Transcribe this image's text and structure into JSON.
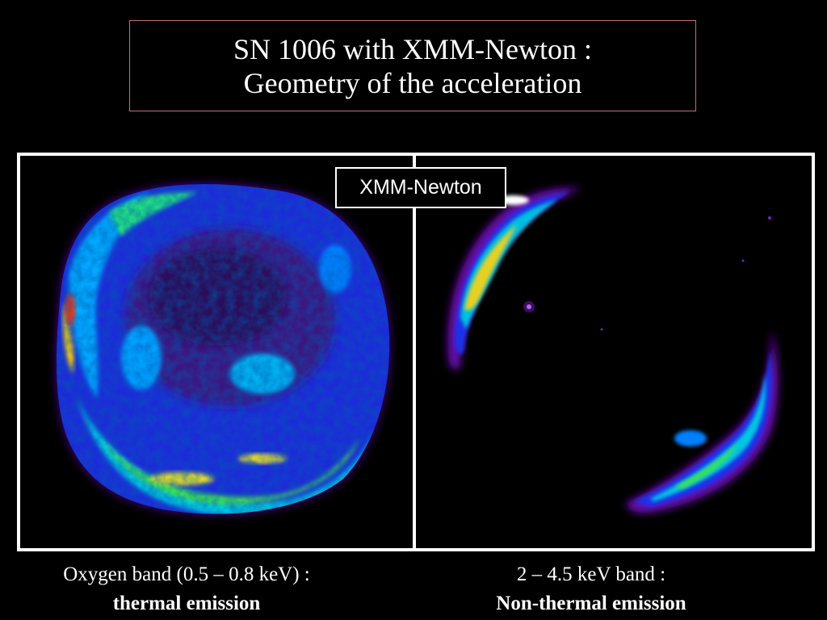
{
  "slide": {
    "title_line1": "SN 1006 with XMM-Newton :",
    "title_line2": "Geometry of the acceleration",
    "badge": "XMM-Newton",
    "left_caption_line1": "Oxygen band (0.5 – 0.8 keV) :",
    "left_caption_line2": "thermal emission",
    "right_caption_line1": "2 – 4.5 keV band :",
    "right_caption_line2": "Non-thermal emission"
  },
  "colors": {
    "background": "#000000",
    "frame": "#ffffff",
    "title_border": "#c86a7a",
    "heatmap_scale": [
      "#5a0a8a",
      "#1a2ae0",
      "#0090ff",
      "#00d8d0",
      "#30e060",
      "#e8e020",
      "#ff5a00",
      "#ffffff"
    ]
  },
  "images": {
    "left": "SN 1006 X-ray map, oxygen band",
    "right": "SN 1006 X-ray map, 2 – 4.5 keV band"
  }
}
